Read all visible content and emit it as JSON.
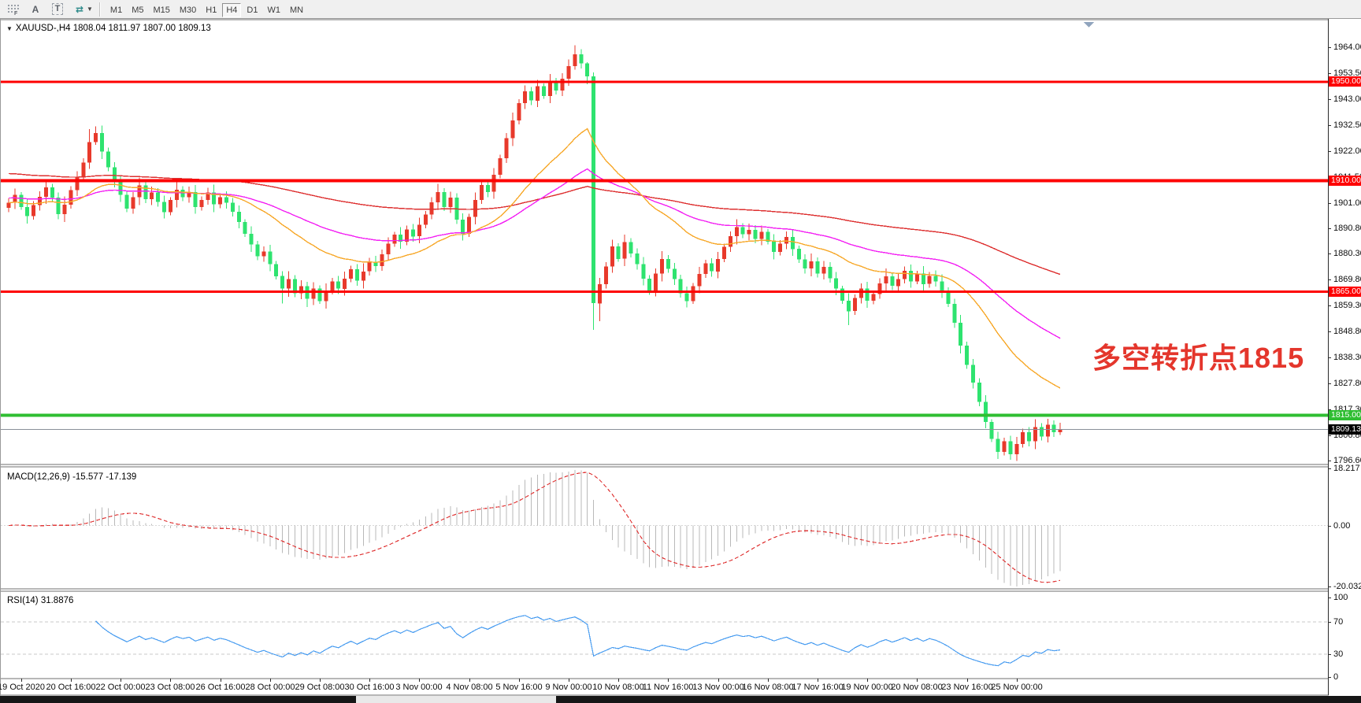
{
  "window": {
    "toolbar": {
      "icons": [
        {
          "name": "grid-f-icon",
          "glyph": "⣿"
        },
        {
          "name": "cursor-a-icon",
          "glyph": "A"
        },
        {
          "name": "text-tool-icon",
          "glyph": "T"
        },
        {
          "name": "cycle-arrows-icon",
          "glyph": "⇄"
        },
        {
          "name": "dropdown-caret-icon",
          "glyph": "▼"
        }
      ],
      "timeframes": [
        "M1",
        "M5",
        "M15",
        "M30",
        "H1",
        "H4",
        "D1",
        "W1",
        "MN"
      ],
      "active_timeframe": "H4"
    }
  },
  "chart": {
    "title": "XAUUSD-,H4  1808.04 1811.97 1807.00 1809.13",
    "symbol": "XAUUSD-",
    "timeframe": "H4",
    "ohlc_display": {
      "open": "1808.04",
      "high": "1811.97",
      "low": "1807.00",
      "close": "1809.13"
    },
    "annotation": {
      "text": "多空转折点1815",
      "color": "#e4362c"
    },
    "price_ticks": [
      "1964.00",
      "1953.50",
      "1943.00",
      "1932.50",
      "1922.00",
      "1911.50",
      "1901.00",
      "1890.80",
      "1880.30",
      "1869.80",
      "1859.30",
      "1848.80",
      "1838.30",
      "1827.80",
      "1817.30",
      "1806.80",
      "1796.60"
    ],
    "hlines": [
      {
        "price": 1950,
        "label": "1950.00",
        "color": "#fe0000",
        "thickness": 3
      },
      {
        "price": 1910,
        "label": "1910.00",
        "color": "#fe0000",
        "thickness": 4
      },
      {
        "price": 1865,
        "label": "1865.00",
        "color": "#fe0000",
        "thickness": 3
      },
      {
        "price": 1815,
        "label": "1815.00",
        "color": "#2fbe32",
        "thickness": 4
      }
    ],
    "current_price": {
      "value": 1809.13,
      "label": "1809.13",
      "line_color": "#8a9099",
      "badge_bg": "#000000"
    },
    "date_ticks": [
      "19 Oct 2020",
      "20 Oct 16:00",
      "22 Oct 00:00",
      "23 Oct 08:00",
      "26 Oct 16:00",
      "28 Oct 00:00",
      "29 Oct 08:00",
      "30 Oct 16:00",
      "3 Nov 00:00",
      "4 Nov 08:00",
      "5 Nov 16:00",
      "9 Nov 00:00",
      "10 Nov 08:00",
      "11 Nov 16:00",
      "13 Nov 00:00",
      "16 Nov 08:00",
      "17 Nov 16:00",
      "19 Nov 00:00",
      "20 Nov 08:00",
      "23 Nov 16:00",
      "25 Nov 00:00"
    ]
  },
  "indicators": {
    "macd": {
      "label": "MACD(12,26,9) -15.577 -17.139",
      "params": [
        12,
        26,
        9
      ],
      "value": "-15.577",
      "signal_value": "-17.139",
      "axis": [
        "18.217",
        "0.00",
        "-20.032"
      ],
      "axis_range": [
        -20.032,
        18.217
      ],
      "histogram_color": "#b9b9b9",
      "signal_color": "#e03939"
    },
    "rsi": {
      "label": "RSI(14) 31.8876",
      "period": 14,
      "value": "31.8876",
      "axis": [
        "100",
        "70",
        "30",
        "0"
      ],
      "levels": [
        70,
        30
      ],
      "color": "#4a9df0",
      "level_color": "#c8c8c8"
    }
  },
  "chart_data": {
    "type": "candlestick",
    "symbol": "XAUUSD",
    "timeframe": "H4",
    "up_color": "#e8392b",
    "down_color": "#2ee36f",
    "y_axis_range": [
      1795,
      1974
    ],
    "first_open": 1899.0,
    "closes": [
      1901.0,
      1904.2,
      1899.3,
      1895.6,
      1900.1,
      1903.4,
      1907.2,
      1903.1,
      1896.4,
      1900.3,
      1906.2,
      1911.4,
      1917.3,
      1925.6,
      1929.2,
      1921.8,
      1915.3,
      1909.4,
      1904.2,
      1898.6,
      1903.3,
      1908.1,
      1902.4,
      1905.2,
      1901.3,
      1897.2,
      1902.1,
      1906.3,
      1903.2,
      1905.4,
      1899.3,
      1902.2,
      1905.1,
      1900.4,
      1903.2,
      1901.1,
      1897.3,
      1893.2,
      1888.4,
      1884.1,
      1879.3,
      1881.2,
      1876.1,
      1871.3,
      1866.2,
      1870.1,
      1864.3,
      1867.2,
      1862.1,
      1866.3,
      1861.2,
      1865.4,
      1869.1,
      1866.2,
      1870.3,
      1874.1,
      1869.4,
      1873.2,
      1877.1,
      1875.3,
      1880.2,
      1884.4,
      1888.1,
      1885.3,
      1890.2,
      1887.4,
      1892.1,
      1896.3,
      1901.2,
      1905.4,
      1899.3,
      1903.1,
      1894.2,
      1888.4,
      1895.3,
      1902.1,
      1908.2,
      1905.4,
      1912.3,
      1919.1,
      1927.2,
      1934.4,
      1941.3,
      1946.1,
      1942.4,
      1948.2,
      1944.3,
      1950.1,
      1946.4,
      1951.2,
      1956.3,
      1961.1,
      1957.4,
      1952.2,
      1860.3,
      1868.1,
      1875.2,
      1883.4,
      1878.3,
      1885.1,
      1880.4,
      1876.2,
      1870.3,
      1865.1,
      1872.4,
      1878.2,
      1874.3,
      1870.1,
      1864.4,
      1861.2,
      1867.3,
      1872.1,
      1876.4,
      1873.2,
      1878.3,
      1883.1,
      1887.4,
      1891.2,
      1888.3,
      1890.1,
      1886.4,
      1889.2,
      1885.3,
      1881.1,
      1884.4,
      1887.2,
      1882.3,
      1878.1,
      1874.4,
      1877.2,
      1872.3,
      1875.1,
      1870.4,
      1866.2,
      1861.3,
      1857.1,
      1862.4,
      1866.2,
      1861.3,
      1864.1,
      1868.4,
      1871.2,
      1867.3,
      1870.1,
      1873.4,
      1869.2,
      1872.3,
      1868.1,
      1871.4,
      1869.2,
      1865.3,
      1860.1,
      1852.4,
      1843.2,
      1835.3,
      1828.1,
      1820.4,
      1812.2,
      1805.3,
      1800.1,
      1804.4,
      1799.2,
      1803.3,
      1808.1,
      1804.4,
      1810.2,
      1806.3,
      1811.1,
      1808.04,
      1809.13
    ],
    "wick_pattern": [
      1.8,
      2.6,
      1.2,
      3.0,
      1.5,
      2.2,
      2.8,
      1.4,
      2.0,
      3.2,
      1.6,
      2.4
    ],
    "high_overrides": {
      "13": 1930.8,
      "14": 1931.9,
      "91": 1964.8,
      "92": 1963.2,
      "93": 1958.0,
      "169": 1811.97
    },
    "low_overrides": {
      "44": 1860.2,
      "48": 1858.7,
      "94": 1849.5,
      "95": 1853.0,
      "135": 1851.5,
      "159": 1797.2,
      "161": 1796.9,
      "169": 1807.0
    },
    "moving_averages": [
      {
        "name": "slow-ma",
        "period": 144,
        "seed": 1913,
        "color": "#dd2f2f"
      },
      {
        "name": "medium-ma",
        "period": 55,
        "seed": 1903,
        "color": "#f321f3"
      },
      {
        "name": "fast-ma",
        "period": 26,
        "seed": 1901,
        "color": "#f7a82a"
      }
    ],
    "x_axis": {
      "bars_per_tick": 8,
      "first_tick_bar": 2
    }
  }
}
